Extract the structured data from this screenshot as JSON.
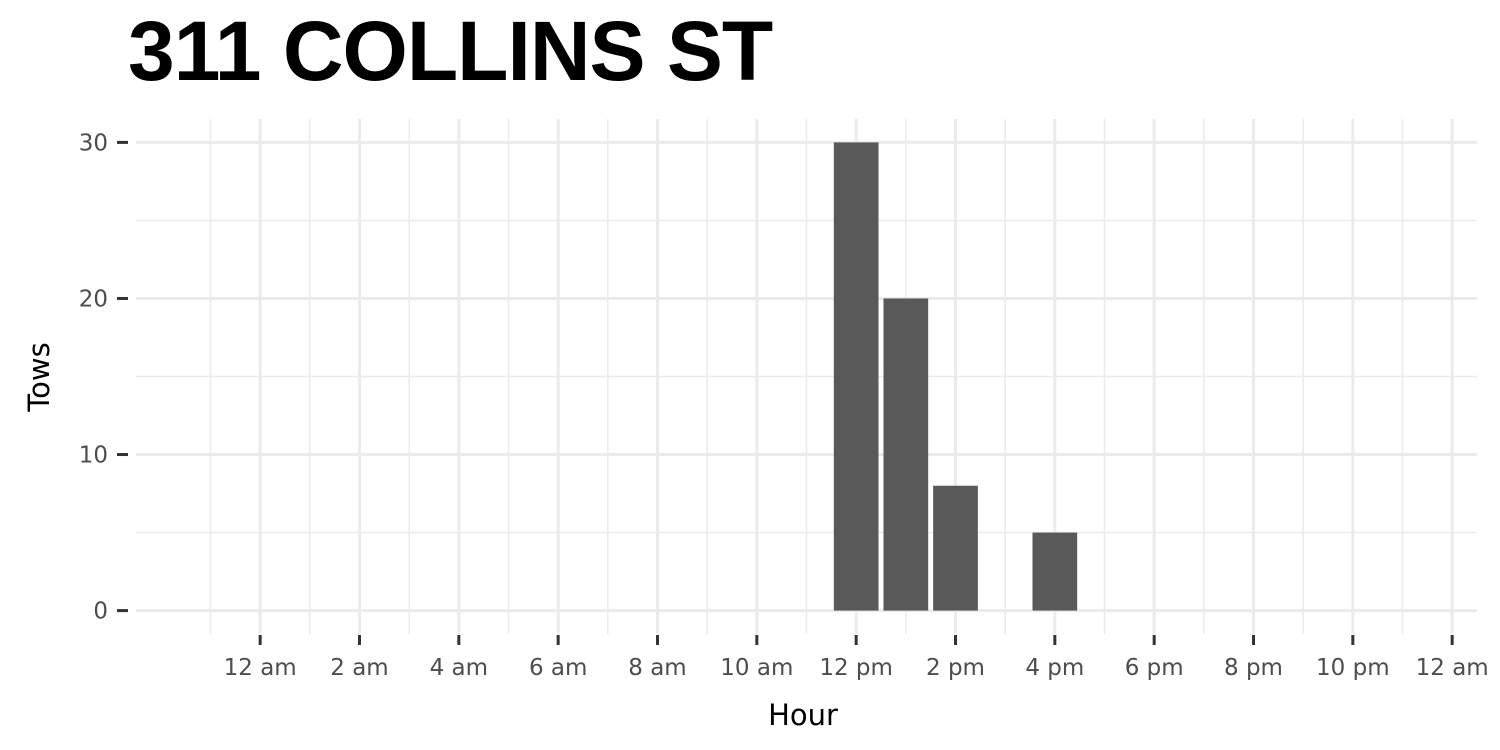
{
  "title": "311 COLLINS ST",
  "chart_data": {
    "type": "bar",
    "title": "311 COLLINS ST",
    "xlabel": "Hour",
    "ylabel": "Tows",
    "xlim": [
      -2.5,
      24.5
    ],
    "ylim": [
      -1.5,
      31.5
    ],
    "x_ticks": [
      0,
      2,
      4,
      6,
      8,
      10,
      12,
      14,
      16,
      18,
      20,
      22,
      24
    ],
    "x_tick_labels": [
      "12 am",
      "2 am",
      "4 am",
      "6 am",
      "8 am",
      "10 am",
      "12 pm",
      "2 pm",
      "4 pm",
      "6 pm",
      "8 pm",
      "10 pm",
      "12 am"
    ],
    "y_ticks": [
      0,
      10,
      20,
      30
    ],
    "y_tick_labels": [
      "0",
      "10",
      "20",
      "30"
    ],
    "x": [
      12,
      13,
      14,
      16
    ],
    "values": [
      30,
      20,
      8,
      5
    ],
    "bar_color": "#595959",
    "grid": true
  }
}
